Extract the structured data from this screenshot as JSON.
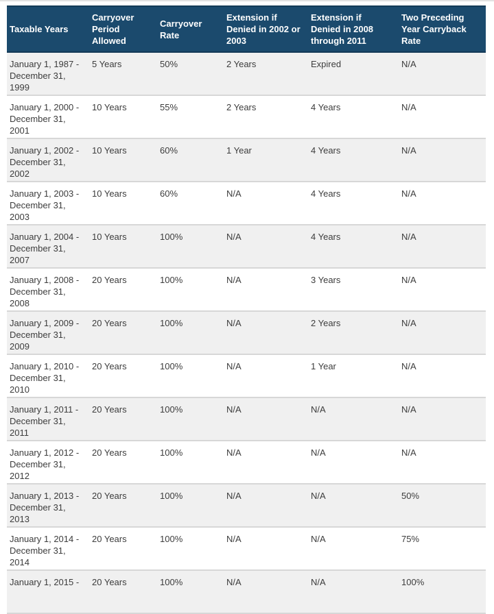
{
  "table": {
    "columns": [
      "Taxable Years",
      "Carryover Period Allowed",
      "Carryover Rate",
      "Extension if Denied in 2002 or 2003",
      "Extension if Denied in 2008 through 2011",
      "Two Preceding Year Carryback Rate"
    ],
    "rows": [
      [
        "January 1, 1987 - December 31, 1999",
        "5 Years",
        "50%",
        "2 Years",
        "Expired",
        "N/A"
      ],
      [
        "January 1, 2000 - December 31, 2001",
        "10 Years",
        "55%",
        "2 Years",
        "4 Years",
        "N/A"
      ],
      [
        "January 1, 2002 - December 31, 2002",
        "10 Years",
        "60%",
        "1 Year",
        "4 Years",
        "N/A"
      ],
      [
        "January 1, 2003 - December 31, 2003",
        "10 Years",
        "60%",
        "N/A",
        "4 Years",
        "N/A"
      ],
      [
        "January 1, 2004 - December 31, 2007",
        "10 Years",
        "100%",
        "N/A",
        "4 Years",
        "N/A"
      ],
      [
        "January 1, 2008 - December 31, 2008",
        "20 Years",
        "100%",
        "N/A",
        "3 Years",
        "N/A"
      ],
      [
        "January 1, 2009 - December 31, 2009",
        "20 Years",
        "100%",
        "N/A",
        "2 Years",
        "N/A"
      ],
      [
        "January 1, 2010 - December 31, 2010",
        "20 Years",
        "100%",
        "N/A",
        "1 Year",
        "N/A"
      ],
      [
        "January 1, 2011 - December 31, 2011",
        "20 Years",
        "100%",
        "N/A",
        "N/A",
        "N/A"
      ],
      [
        "January 1, 2012 - December 31, 2012",
        "20 Years",
        "100%",
        "N/A",
        "N/A",
        "N/A"
      ],
      [
        "January 1, 2013 - December 31, 2013",
        "20 Years",
        "100%",
        "N/A",
        "N/A",
        "50%"
      ],
      [
        "January 1, 2014 - December 31, 2014",
        "20 Years",
        "100%",
        "N/A",
        "N/A",
        "75%"
      ],
      [
        "January 1, 2015 -",
        "20 Years",
        "100%",
        "N/A",
        "N/A",
        "100%"
      ]
    ]
  },
  "colors": {
    "header_bg": "#1b4a6d",
    "header_border": "#133a57",
    "header_text": "#ffffff",
    "row_alt_bg": "#f0f0f0",
    "row_bg": "#ffffff",
    "body_text": "#3c3c3c",
    "divider": "#d7d7d7",
    "top_line": "#e2e2e2"
  }
}
